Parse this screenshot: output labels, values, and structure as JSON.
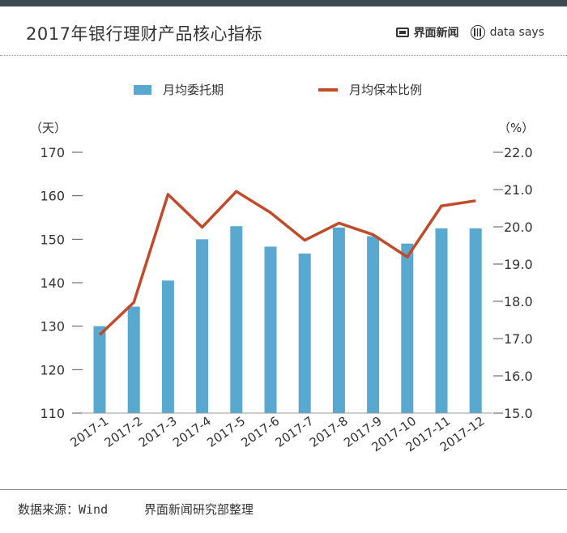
{
  "header": {
    "title": "2017年银行理财产品核心指标",
    "brand": "界面新闻",
    "brand_sub": "data says"
  },
  "legend": {
    "bar": "月均委托期",
    "line": "月均保本比例"
  },
  "footer": {
    "source": "数据来源：Wind",
    "credit": "界面新闻研究部整理"
  },
  "colors": {
    "bar": "#59a8d0",
    "line": "#c04a2a"
  },
  "chart_data": {
    "type": "bar+line",
    "categories": [
      "2017-1",
      "2017-2",
      "2017-3",
      "2017-4",
      "2017-5",
      "2017-6",
      "2017-7",
      "2017-8",
      "2017-9",
      "2017-10",
      "2017-11",
      "2017-12"
    ],
    "series": [
      {
        "name": "月均委托期",
        "type": "bar",
        "axis": "left",
        "values": [
          130,
          134.5,
          140.5,
          150,
          153,
          148.3,
          146.7,
          152.7,
          150.7,
          149,
          152.5,
          152.5
        ]
      },
      {
        "name": "月均保本比例",
        "type": "line",
        "axis": "right",
        "values": [
          17.1,
          17.97,
          20.87,
          19.99,
          20.95,
          20.38,
          19.64,
          20.1,
          19.79,
          19.19,
          20.56,
          20.7
        ]
      }
    ],
    "y_left": {
      "unit": "（天）",
      "ylim": [
        110,
        170
      ],
      "ticks": [
        "110",
        "120",
        "130",
        "140",
        "150",
        "160",
        "170"
      ]
    },
    "y_right": {
      "unit": "（%）",
      "ylim": [
        15,
        22
      ],
      "ticks": [
        "15.0",
        "16.0",
        "17.0",
        "18.0",
        "19.0",
        "20.0",
        "21.0",
        "22.0"
      ]
    },
    "grid": false,
    "legend_position": "top-center"
  }
}
